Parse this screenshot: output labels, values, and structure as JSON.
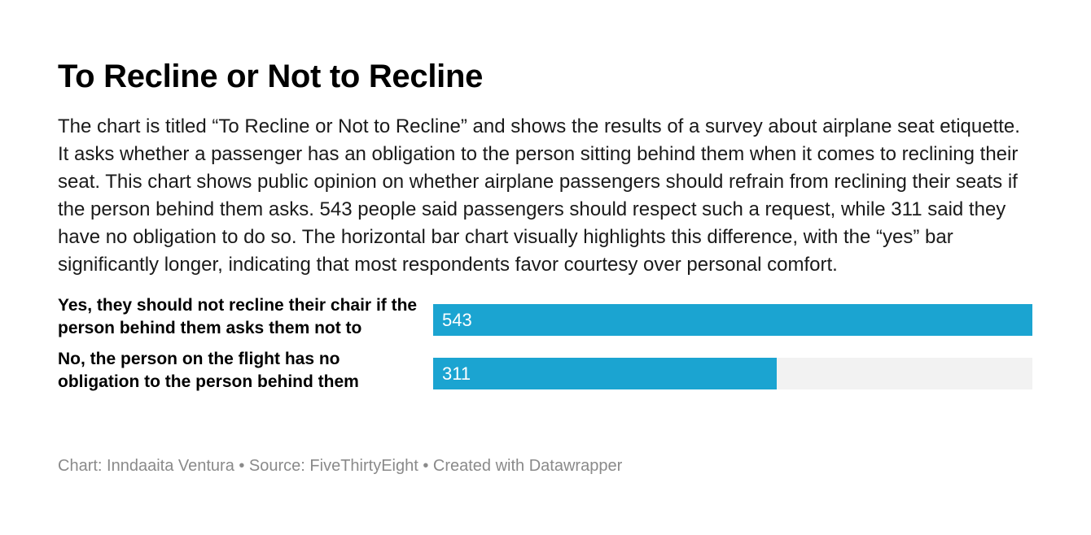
{
  "header": {
    "title": "To Recline or Not to Recline",
    "description": "The chart is titled “To Recline or Not to Recline” and shows the results of a survey about airplane seat etiquette. It asks whether a passenger has an obligation to the person sitting behind them when it comes to reclining their seat. This chart shows public opinion on whether airplane passengers should refrain from reclining their seats if the person behind them asks. 543 people said passengers should respect such a request, while 311 said they have no obligation to do so. The horizontal bar chart visually highlights this difference, with the “yes” bar significantly longer, indicating that most respondents favor courtesy over personal comfort."
  },
  "chart_data": {
    "type": "bar",
    "orientation": "horizontal",
    "categories": [
      "Yes, they should not recline their chair if the person behind them asks them not to",
      "No, the person on the flight has no obligation to the person behind them"
    ],
    "values": [
      543,
      311
    ],
    "value_labels": [
      "543",
      "311"
    ],
    "xlim": [
      0,
      543
    ],
    "bar_color": "#1ba4d1",
    "track_color": "#f2f2f2",
    "grid": false
  },
  "footer": {
    "text": "Chart: Inndaaita Ventura • Source: FiveThirtyEight • Created with Datawrapper"
  }
}
